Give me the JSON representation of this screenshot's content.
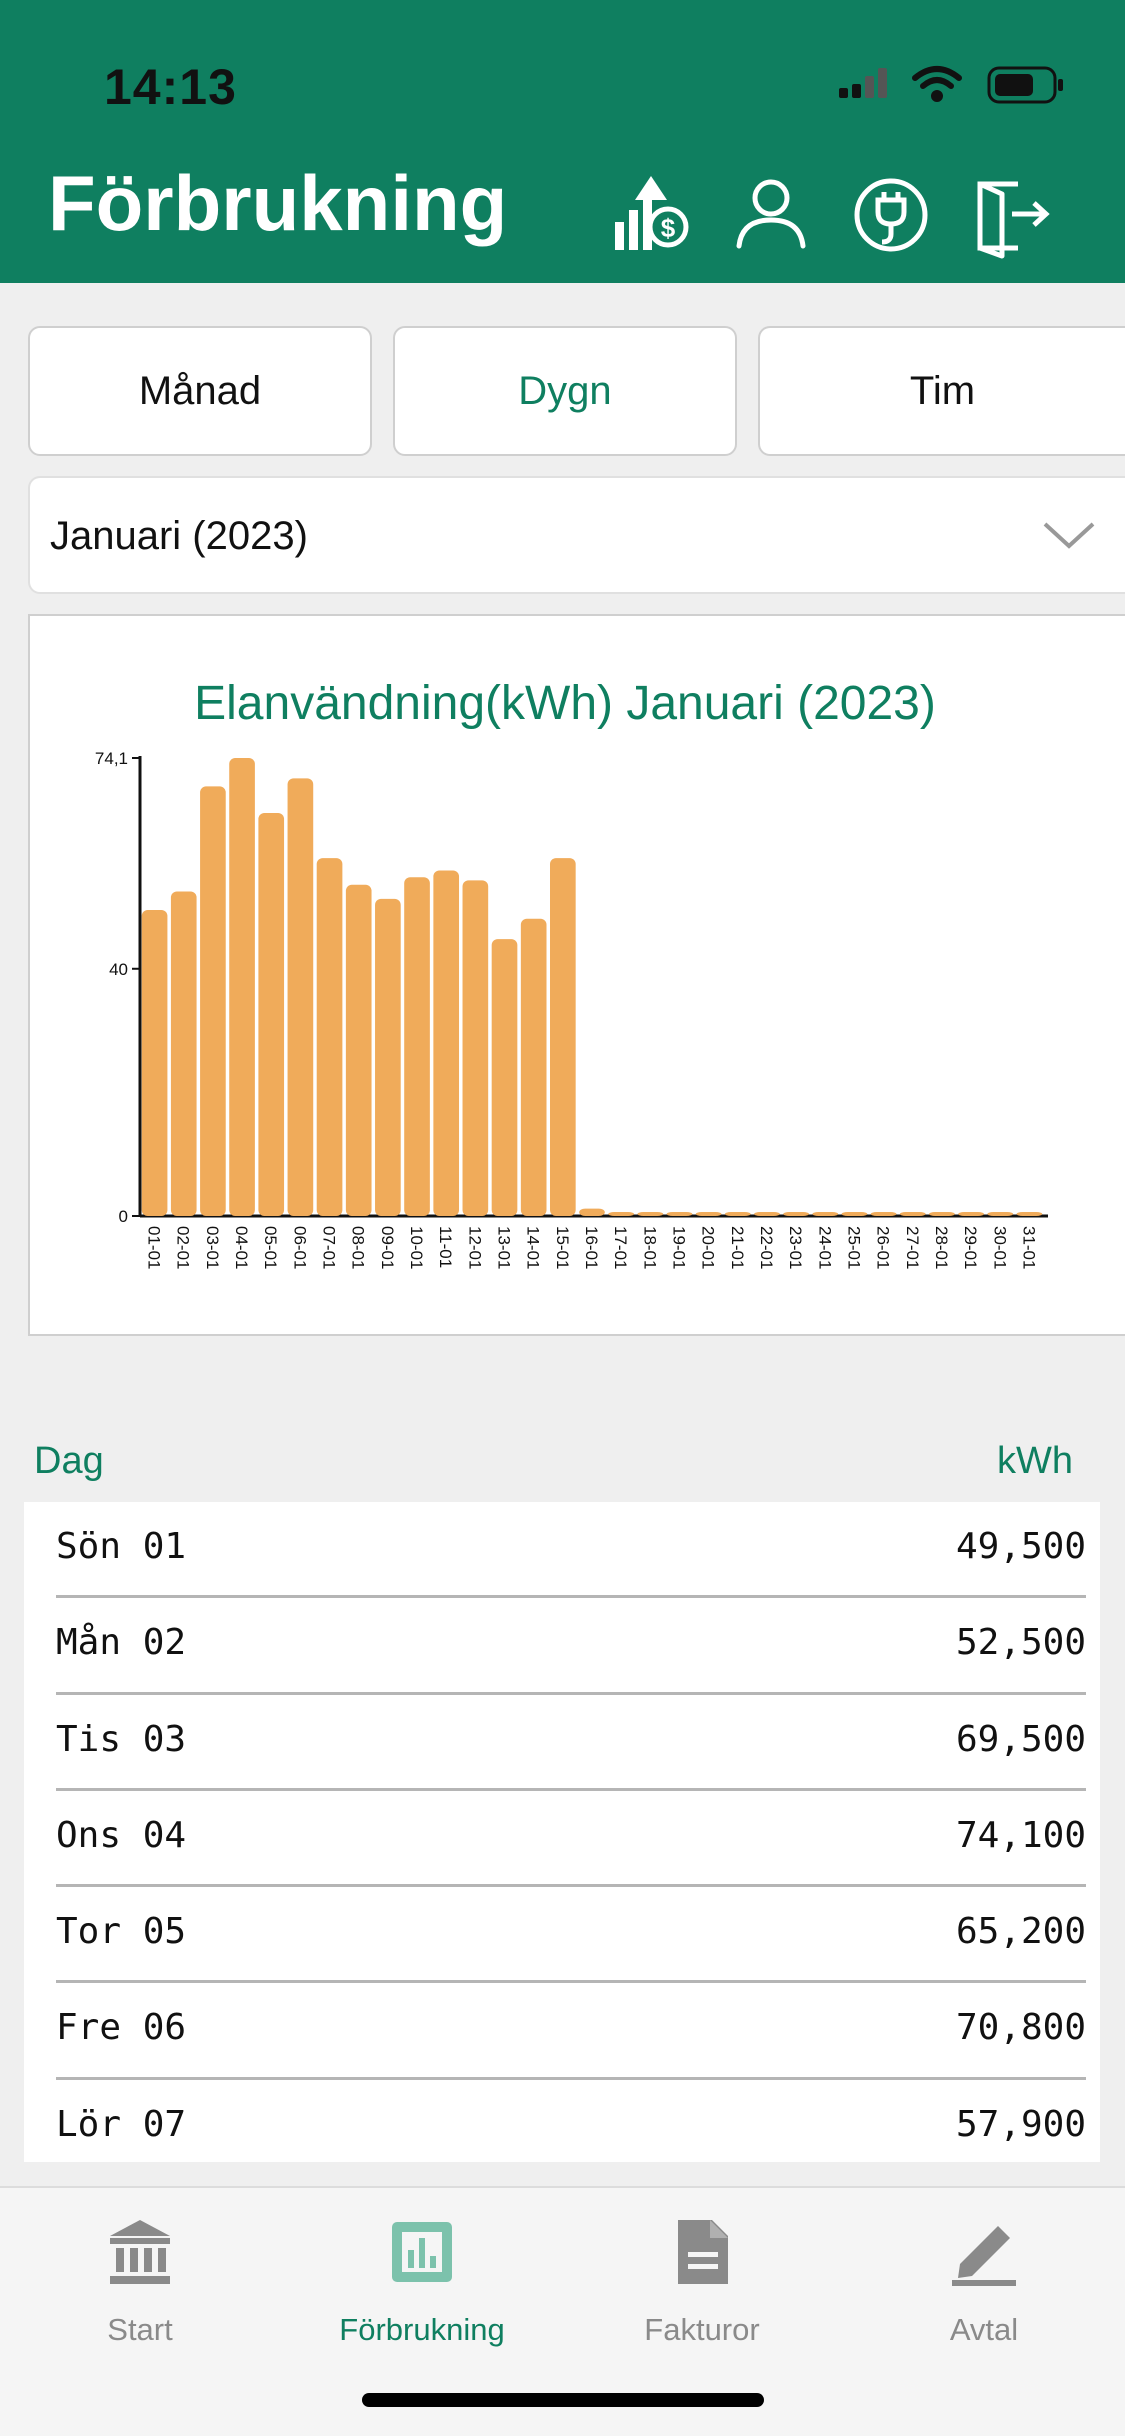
{
  "status_bar": {
    "time": "14:13"
  },
  "header": {
    "title": "Förbrukning",
    "icons": [
      "price-chart-icon",
      "user-icon",
      "plug-icon",
      "logout-icon"
    ]
  },
  "segments": [
    {
      "label": "Månad",
      "active": false
    },
    {
      "label": "Dygn",
      "active": true
    },
    {
      "label": "Tim",
      "active": false
    }
  ],
  "period_select": {
    "value": "Januari (2023)"
  },
  "chart_data": {
    "type": "bar",
    "title": "Elanvändning(kWh) Januari (2023)",
    "categories": [
      "01-01",
      "02-01",
      "03-01",
      "04-01",
      "05-01",
      "06-01",
      "07-01",
      "08-01",
      "09-01",
      "10-01",
      "11-01",
      "12-01",
      "13-01",
      "14-01",
      "15-01",
      "16-01",
      "17-01",
      "18-01",
      "19-01",
      "20-01",
      "21-01",
      "22-01",
      "23-01",
      "24-01",
      "25-01",
      "26-01",
      "27-01",
      "28-01",
      "29-01",
      "30-01",
      "31-01"
    ],
    "values": [
      49.5,
      52.5,
      69.5,
      74.1,
      65.2,
      70.8,
      57.9,
      53.6,
      51.3,
      54.8,
      55.9,
      54.3,
      44.8,
      48.1,
      57.9,
      1.2,
      0,
      0,
      0,
      0,
      0,
      0,
      0,
      0,
      0,
      0,
      0,
      0,
      0,
      0,
      0
    ],
    "y_ticks": [
      "0",
      "40",
      "74,1"
    ],
    "ylim": [
      0,
      74.1
    ],
    "bar_color": "#f0ab5a",
    "grid": false
  },
  "table": {
    "col_day": "Dag",
    "col_value": "kWh",
    "rows": [
      {
        "day": "Sön 01",
        "kwh": "49,500"
      },
      {
        "day": "Mån 02",
        "kwh": "52,500"
      },
      {
        "day": "Tis 03",
        "kwh": "69,500"
      },
      {
        "day": "Ons 04",
        "kwh": "74,100"
      },
      {
        "day": "Tor 05",
        "kwh": "65,200"
      },
      {
        "day": "Fre 06",
        "kwh": "70,800"
      },
      {
        "day": "Lör 07",
        "kwh": "57,900"
      }
    ]
  },
  "tabbar": [
    {
      "label": "Start",
      "icon": "bank-icon",
      "active": false
    },
    {
      "label": "Förbrukning",
      "icon": "bar-chart-icon",
      "active": true
    },
    {
      "label": "Fakturor",
      "icon": "document-icon",
      "active": false
    },
    {
      "label": "Avtal",
      "icon": "pen-icon",
      "active": false
    }
  ],
  "colors": {
    "brand": "#0f7f60",
    "bar": "#f0ab5a"
  }
}
